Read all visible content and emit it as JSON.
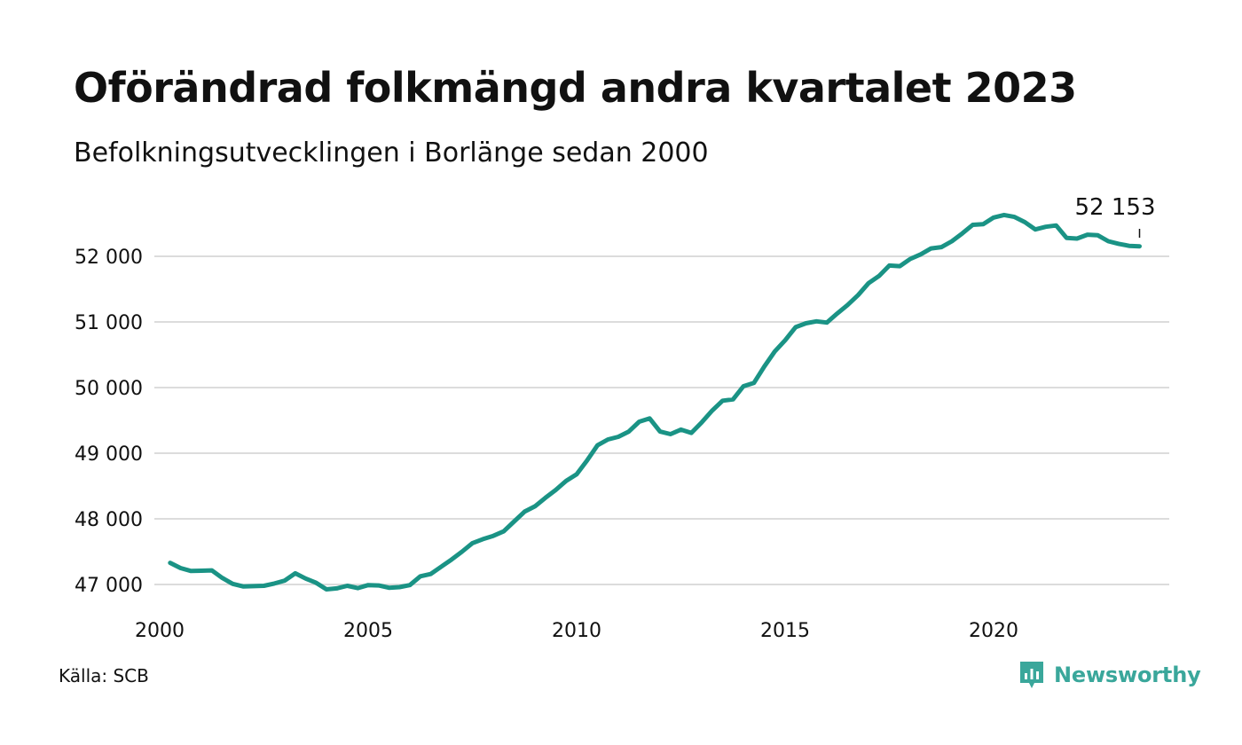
{
  "header": {
    "title": "Oförändrad folkmängd andra kvartalet 2023",
    "subtitle": "Befolkningsutvecklingen i Borlänge sedan 2000"
  },
  "footer": {
    "source": "Källa: SCB",
    "brand": "Newsworthy"
  },
  "colors": {
    "line": "#1a9385",
    "grid": "#dcdcdc",
    "brand": "#3aa79b"
  },
  "chart_data": {
    "type": "line",
    "xlim": [
      2000,
      2024
    ],
    "ylim": [
      46600,
      52800
    ],
    "yticks": [
      47000,
      48000,
      49000,
      50000,
      51000,
      52000
    ],
    "ytick_labels": [
      "47 000",
      "48 000",
      "49 000",
      "50 000",
      "51 000",
      "52 000"
    ],
    "xticks": [
      2000,
      2005,
      2010,
      2015,
      2020
    ],
    "xtick_labels": [
      "2000",
      "2005",
      "2010",
      "2015",
      "2020"
    ],
    "grid": "horizontal",
    "end_label": "52 153",
    "series": [
      {
        "x": [
          2000.25,
          2000.5,
          2000.75,
          2001,
          2001.25,
          2001.5,
          2001.75,
          2002,
          2002.25,
          2002.5,
          2002.75,
          2003,
          2003.25,
          2003.5,
          2003.75,
          2004,
          2004.25,
          2004.5,
          2004.75,
          2005,
          2005.25,
          2005.5,
          2005.75,
          2006,
          2006.25,
          2006.5,
          2006.75,
          2007,
          2007.25,
          2007.5,
          2007.75,
          2008,
          2008.25,
          2008.5,
          2008.75,
          2009,
          2009.25,
          2009.5,
          2009.75,
          2010,
          2010.25,
          2010.5,
          2010.75,
          2011,
          2011.25,
          2011.5,
          2011.75,
          2012,
          2012.25,
          2012.5,
          2012.75,
          2013,
          2013.25,
          2013.5,
          2013.75,
          2014,
          2014.25,
          2014.5,
          2014.75,
          2015,
          2015.25,
          2015.5,
          2015.75,
          2016,
          2016.25,
          2016.5,
          2016.75,
          2017,
          2017.25,
          2017.5,
          2017.75,
          2018,
          2018.25,
          2018.5,
          2018.75,
          2019,
          2019.25,
          2019.5,
          2019.75,
          2020,
          2020.25,
          2020.5,
          2020.75,
          2021,
          2021.25,
          2021.5,
          2021.75,
          2022,
          2022.25,
          2022.5,
          2022.75,
          2023,
          2023.25,
          2023.5
        ],
        "values": [
          47330,
          47250,
          47205,
          47210,
          47215,
          47100,
          47010,
          46970,
          46975,
          46980,
          47015,
          47060,
          47170,
          47090,
          47025,
          46925,
          46940,
          46980,
          46945,
          46990,
          46985,
          46950,
          46960,
          46990,
          47125,
          47160,
          47270,
          47380,
          47500,
          47630,
          47690,
          47740,
          47810,
          47960,
          48110,
          48190,
          48320,
          48440,
          48580,
          48680,
          48890,
          49120,
          49210,
          49250,
          49330,
          49480,
          49530,
          49330,
          49290,
          49360,
          49310,
          49470,
          49650,
          49800,
          49820,
          50020,
          50070,
          50320,
          50550,
          50720,
          50920,
          50980,
          51010,
          50990,
          51130,
          51260,
          51410,
          51590,
          51700,
          51860,
          51850,
          51960,
          52030,
          52120,
          52140,
          52230,
          52350,
          52480,
          52490,
          52590,
          52630,
          52600,
          52520,
          52410,
          52450,
          52470,
          52280,
          52270,
          52330,
          52320,
          52230,
          52190,
          52160,
          52153
        ]
      }
    ]
  }
}
